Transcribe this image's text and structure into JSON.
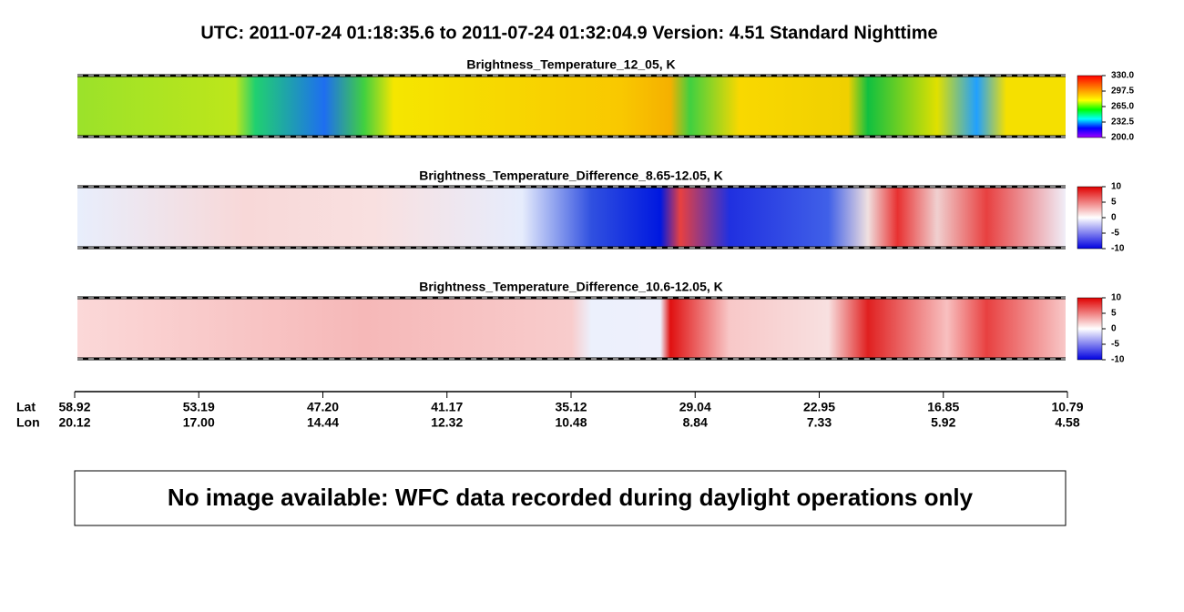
{
  "header": {
    "title": "UTC:  2011-07-24   01:18:35.6  to  2011-07-24   01:32:04.9    Version: 4.51  Standard Nighttime"
  },
  "panels": [
    {
      "title": "Brightness_Temperature_12_05, K",
      "colorbar_ticks": [
        "330.0",
        "297.5",
        "265.0",
        "232.5",
        "200.0"
      ]
    },
    {
      "title": "Brightness_Temperature_Difference_8.65-12.05, K",
      "colorbar_ticks": [
        "10",
        "5",
        "0",
        "-5",
        "-10"
      ]
    },
    {
      "title": "Brightness_Temperature_Difference_10.6-12.05, K",
      "colorbar_ticks": [
        "10",
        "5",
        "0",
        "-5",
        "-10"
      ]
    }
  ],
  "axis": {
    "row_labels": [
      "Lat",
      "Lon"
    ],
    "ticks": [
      {
        "lat": "58.92",
        "lon": "20.12"
      },
      {
        "lat": "53.19",
        "lon": "17.00"
      },
      {
        "lat": "47.20",
        "lon": "14.44"
      },
      {
        "lat": "41.17",
        "lon": "12.32"
      },
      {
        "lat": "35.12",
        "lon": "10.48"
      },
      {
        "lat": "29.04",
        "lon": "8.84"
      },
      {
        "lat": "22.95",
        "lon": "7.33"
      },
      {
        "lat": "16.85",
        "lon": "5.92"
      },
      {
        "lat": "10.79",
        "lon": "4.58"
      }
    ]
  },
  "notice": "No image available: WFC data recorded during daylight operations only"
}
